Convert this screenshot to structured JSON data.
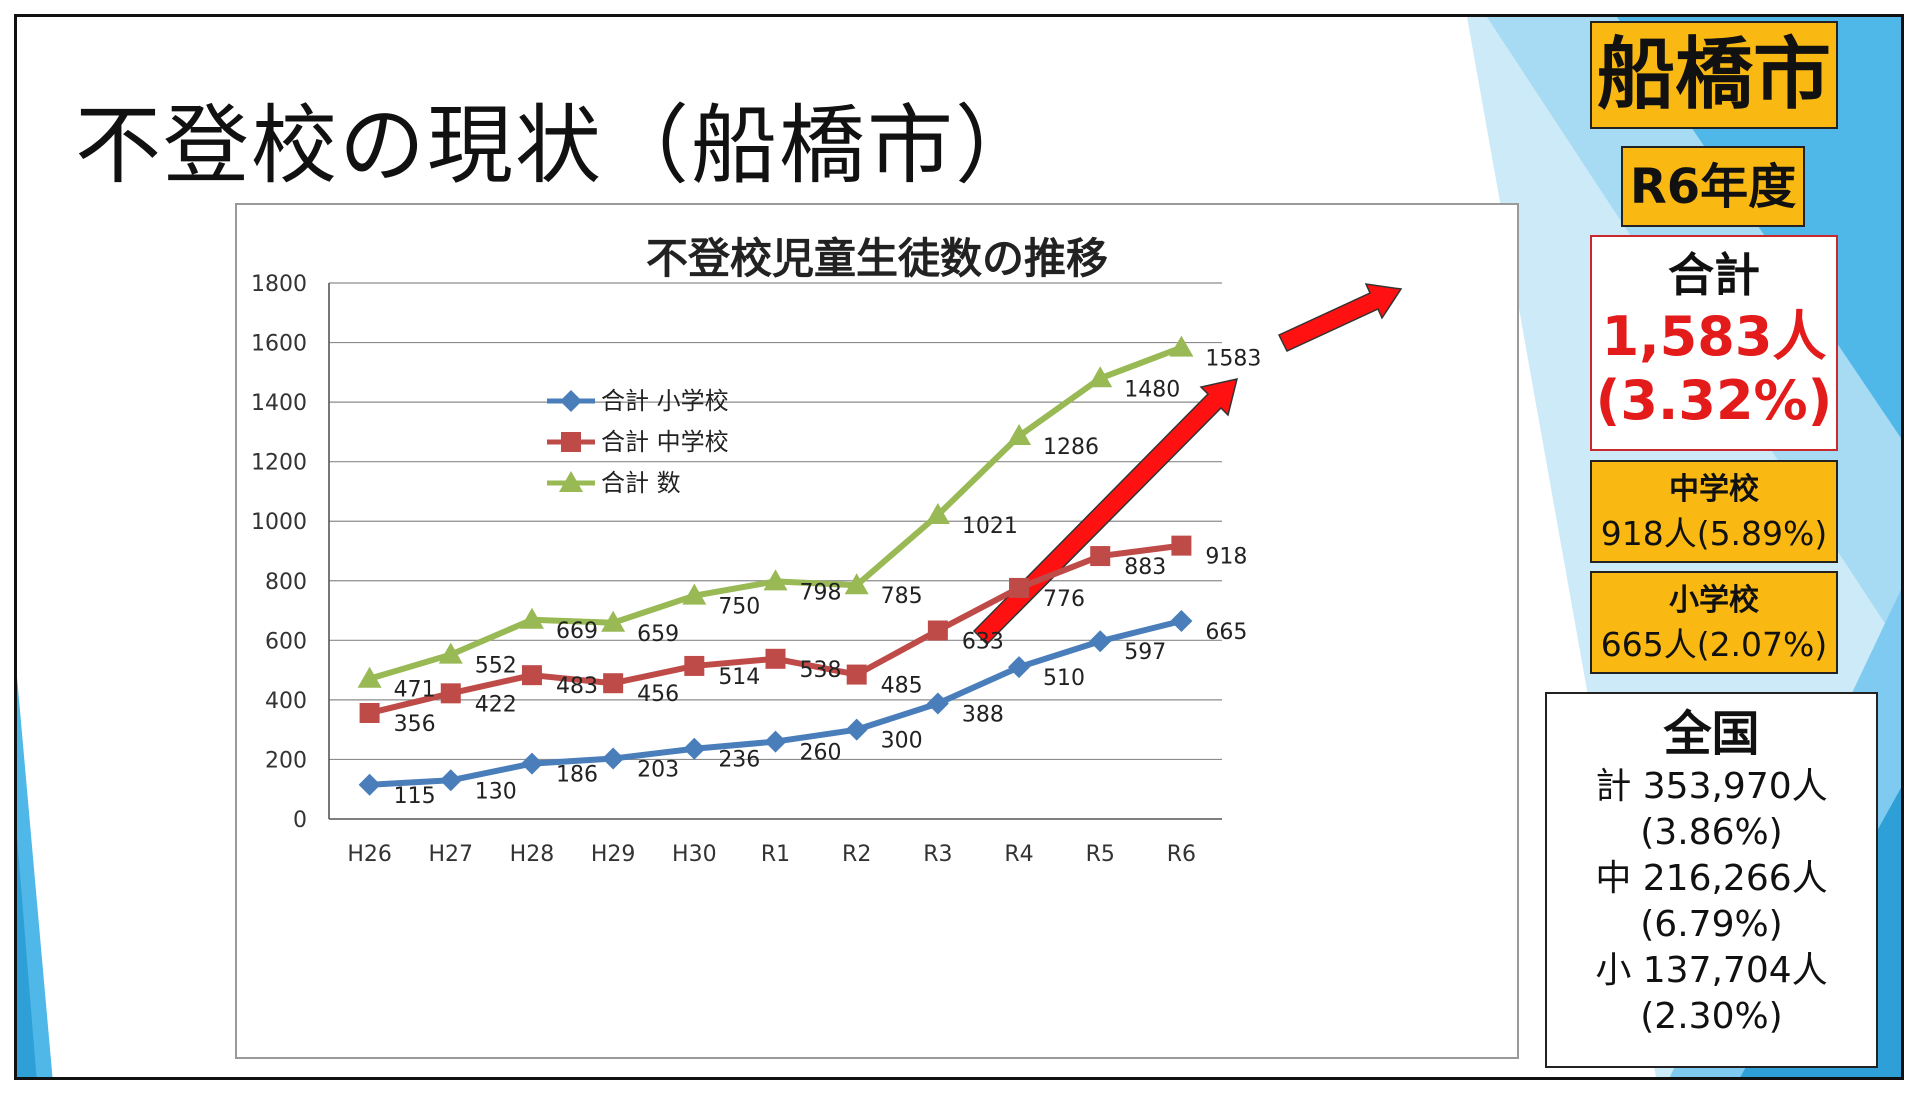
{
  "slide": {
    "title": "不登校の現状（船橋市）"
  },
  "sidebar": {
    "city": "船橋市",
    "year": "R6年度",
    "total_label": "合計",
    "total_value": "1,583人",
    "total_rate": "(3.32%)",
    "jhs_label": "中学校",
    "jhs_value": "918人(5.89%)",
    "es_label": "小学校",
    "es_value": "665人(2.07%)",
    "national_title": "全国",
    "national_total": "計 353,970人",
    "national_total_rate": "(3.86%)",
    "national_jhs": "中 216,266人",
    "national_jhs_rate": "(6.79%)",
    "national_es": "小 137,704人",
    "national_es_rate": "(2.30%)"
  },
  "colors": {
    "sidebar_orange": "#f9b912",
    "highlight_red": "#e31b1b",
    "arrow_red": "#ff1111",
    "deco_blue": "#4fb8e8"
  },
  "chart_data": {
    "type": "line",
    "title": "不登校児童生徒数の推移",
    "xlabel": "",
    "ylabel": "",
    "ylim": [
      0,
      1800
    ],
    "yticks": [
      0,
      200,
      400,
      600,
      800,
      1000,
      1200,
      1400,
      1600,
      1800
    ],
    "grid": true,
    "legend_position": "upper-left",
    "categories": [
      "H26",
      "H27",
      "H28",
      "H29",
      "H30",
      "R1",
      "R2",
      "R3",
      "R4",
      "R5",
      "R6"
    ],
    "series": [
      {
        "name": "合計 小学校",
        "color": "#4a7ebb",
        "marker": "diamond",
        "values": [
          115,
          130,
          186,
          203,
          236,
          260,
          300,
          388,
          510,
          597,
          665
        ]
      },
      {
        "name": "合計 中学校",
        "color": "#be4b48",
        "marker": "square",
        "values": [
          356,
          422,
          483,
          456,
          514,
          538,
          485,
          633,
          776,
          883,
          918
        ]
      },
      {
        "name": "合計 数",
        "color": "#98b954",
        "marker": "triangle",
        "values": [
          471,
          552,
          669,
          659,
          750,
          798,
          785,
          1021,
          1286,
          1480,
          1583
        ]
      }
    ]
  }
}
